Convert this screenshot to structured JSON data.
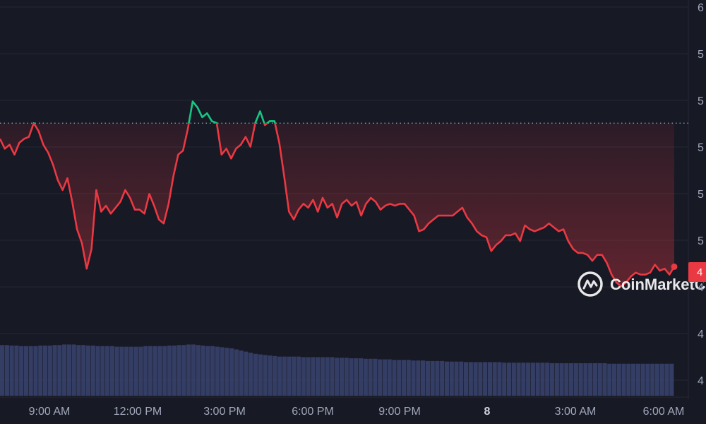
{
  "chart_data": {
    "type": "line",
    "title": "",
    "xlabel": "",
    "ylabel": "",
    "x_ticks": [
      "9:00 AM",
      "12:00 PM",
      "3:00 PM",
      "6:00 PM",
      "9:00 PM",
      "8",
      "3:00 AM",
      "6:00 AM"
    ],
    "y_ticks": [
      "6",
      "5",
      "5",
      "5",
      "5",
      "5",
      "4",
      "4",
      "4"
    ],
    "price_tag": "4",
    "reference_value": 55.7,
    "ylim": [
      42.2,
      61.6
    ],
    "volume_ylim": [
      0,
      1
    ],
    "colors": {
      "above_reference": "#16c784",
      "below_reference": "#ea3943",
      "grid": "#242736",
      "volume": "#3f4a7a",
      "background": "#171924"
    },
    "series": [
      {
        "x": [
          0,
          1,
          2,
          3,
          4,
          5,
          6,
          7,
          8,
          9,
          10,
          11,
          12,
          13,
          14,
          15,
          16,
          17,
          18,
          19,
          20,
          21,
          22,
          23,
          24,
          25,
          26,
          27,
          28,
          29,
          30,
          31,
          32,
          33,
          34,
          35,
          36,
          37,
          38,
          39,
          40,
          41,
          42,
          43,
          44,
          45,
          46,
          47,
          48,
          49,
          50,
          51,
          52,
          53,
          54,
          55,
          56,
          57,
          58,
          59,
          60,
          61,
          62,
          63,
          64,
          65,
          66,
          67,
          68,
          69,
          70,
          71,
          72,
          73,
          74,
          75,
          76,
          77,
          78,
          79,
          80,
          81,
          82,
          83,
          84,
          85,
          86,
          87,
          88,
          89,
          90,
          91,
          92,
          93,
          94,
          95,
          96,
          97,
          98,
          99,
          100,
          101,
          102,
          103,
          104,
          105,
          106,
          107,
          108,
          109,
          110,
          111,
          112,
          113,
          114,
          115,
          116,
          117,
          118,
          119,
          120,
          121,
          122,
          123,
          124,
          125,
          126,
          127,
          128,
          129,
          130,
          131,
          132,
          133,
          134,
          135,
          136,
          137,
          138,
          139,
          140
        ],
        "values": [
          54.9,
          54.4,
          54.6,
          54.1,
          54.7,
          54.9,
          55.0,
          55.7,
          55.3,
          54.6,
          54.2,
          53.6,
          52.8,
          52.3,
          52.9,
          51.7,
          50.3,
          49.6,
          48.3,
          49.3,
          52.3,
          51.2,
          51.5,
          51.1,
          51.4,
          51.7,
          52.3,
          51.9,
          51.3,
          51.3,
          51.1,
          52.1,
          51.5,
          50.8,
          50.6,
          51.6,
          53.0,
          54.1,
          54.3,
          55.4,
          56.8,
          56.5,
          56.0,
          56.2,
          55.8,
          55.7,
          54.1,
          54.4,
          53.9,
          54.4,
          54.6,
          55.0,
          54.5,
          55.7,
          56.3,
          55.6,
          55.8,
          55.8,
          54.7,
          53.0,
          51.2,
          50.8,
          51.3,
          51.6,
          51.4,
          51.8,
          51.2,
          51.9,
          51.4,
          51.6,
          50.9,
          51.6,
          51.8,
          51.5,
          51.7,
          51.0,
          51.6,
          51.9,
          51.7,
          51.3,
          51.5,
          51.6,
          51.5,
          51.6,
          51.6,
          51.3,
          51.0,
          50.2,
          50.3,
          50.6,
          50.8,
          51.0,
          51.0,
          51.0,
          51.0,
          51.2,
          51.4,
          50.9,
          50.6,
          50.2,
          50.0,
          49.9,
          49.2,
          49.5,
          49.7,
          50.0,
          50.0,
          50.1,
          49.7,
          50.5,
          50.3,
          50.2,
          50.3,
          50.4,
          50.6,
          50.4,
          50.2,
          50.3,
          49.7,
          49.3,
          49.1,
          49.1,
          49.0,
          48.7,
          49.0,
          49.0,
          48.6,
          48.0,
          47.6,
          47.4,
          47.6,
          47.9,
          48.1,
          48.0,
          48.0,
          48.1,
          48.5,
          48.2,
          48.3,
          48.0,
          48.4
        ]
      }
    ],
    "volume": [
      0.92,
      0.92,
      0.91,
      0.91,
      0.9,
      0.9,
      0.9,
      0.9,
      0.91,
      0.91,
      0.91,
      0.92,
      0.92,
      0.93,
      0.93,
      0.93,
      0.92,
      0.92,
      0.91,
      0.91,
      0.9,
      0.9,
      0.9,
      0.9,
      0.89,
      0.89,
      0.89,
      0.89,
      0.89,
      0.89,
      0.9,
      0.9,
      0.9,
      0.9,
      0.9,
      0.91,
      0.91,
      0.92,
      0.92,
      0.93,
      0.93,
      0.92,
      0.91,
      0.9,
      0.9,
      0.89,
      0.88,
      0.87,
      0.86,
      0.84,
      0.82,
      0.8,
      0.78,
      0.76,
      0.75,
      0.74,
      0.73,
      0.72,
      0.71,
      0.71,
      0.71,
      0.71,
      0.71,
      0.7,
      0.7,
      0.7,
      0.7,
      0.7,
      0.7,
      0.7,
      0.69,
      0.69,
      0.69,
      0.68,
      0.68,
      0.68,
      0.67,
      0.67,
      0.67,
      0.66,
      0.66,
      0.66,
      0.65,
      0.65,
      0.65,
      0.65,
      0.64,
      0.64,
      0.64,
      0.63,
      0.63,
      0.63,
      0.63,
      0.62,
      0.62,
      0.62,
      0.62,
      0.61,
      0.61,
      0.61,
      0.61,
      0.61,
      0.61,
      0.61,
      0.61,
      0.6,
      0.6,
      0.6,
      0.6,
      0.6,
      0.6,
      0.6,
      0.6,
      0.6,
      0.6,
      0.59,
      0.59,
      0.59,
      0.59,
      0.59,
      0.59,
      0.59,
      0.59,
      0.59,
      0.59,
      0.59,
      0.59,
      0.58,
      0.58,
      0.58,
      0.58,
      0.58,
      0.58,
      0.58,
      0.58,
      0.58,
      0.58,
      0.58,
      0.58,
      0.58,
      0.58
    ],
    "watermark": "CoinMarketC"
  }
}
